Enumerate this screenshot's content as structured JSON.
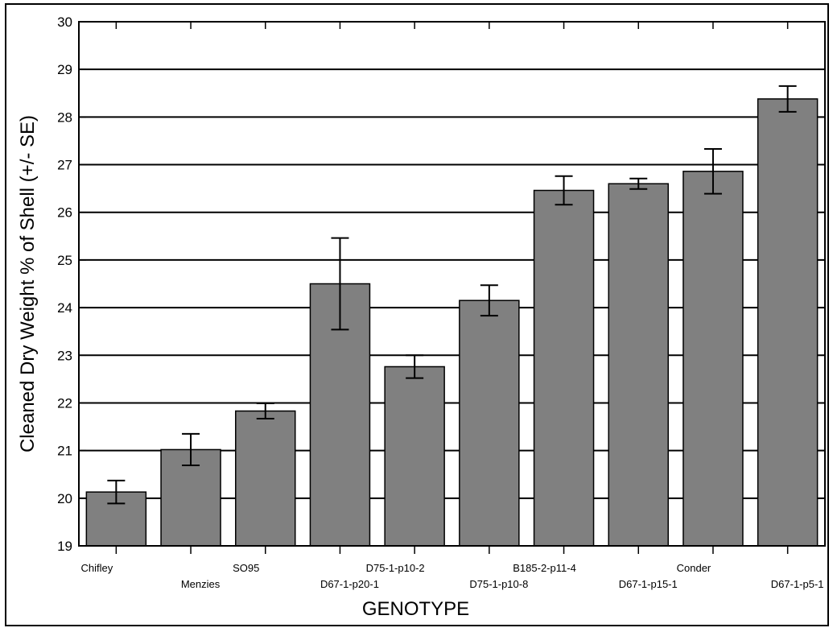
{
  "chart_data": {
    "type": "bar",
    "title": "",
    "xlabel": "GENOTYPE",
    "ylabel": "Cleaned Dry Weight % of Shell (+/- SE)",
    "ylim": [
      19,
      30
    ],
    "yticks": [
      19,
      20,
      21,
      22,
      23,
      24,
      25,
      26,
      27,
      28,
      29,
      30
    ],
    "grid": "horizontal gridlines at each integer tick",
    "legend": "none",
    "categories": [
      "Chifley",
      "Menzies",
      "SO95",
      "D67-1-p20-1",
      "D75-1-p10-2",
      "D75-1-p10-8",
      "B185-2-p11-4",
      "D67-1-p15-1",
      "Conder",
      "D67-1-p5-1"
    ],
    "values": [
      20.13,
      21.02,
      21.83,
      24.5,
      22.76,
      24.15,
      26.46,
      26.6,
      26.86,
      28.38
    ],
    "error": [
      0.24,
      0.33,
      0.16,
      0.96,
      0.24,
      0.32,
      0.3,
      0.11,
      0.47,
      0.27
    ],
    "label_rows": [
      "upper",
      "lower",
      "upper",
      "lower",
      "upper",
      "lower",
      "upper",
      "lower",
      "upper",
      "lower"
    ],
    "colors": {
      "bar_fill": "#808080",
      "bar_stroke": "#000000",
      "grid": "#000000",
      "axis": "#000000",
      "background": "#ffffff"
    }
  }
}
